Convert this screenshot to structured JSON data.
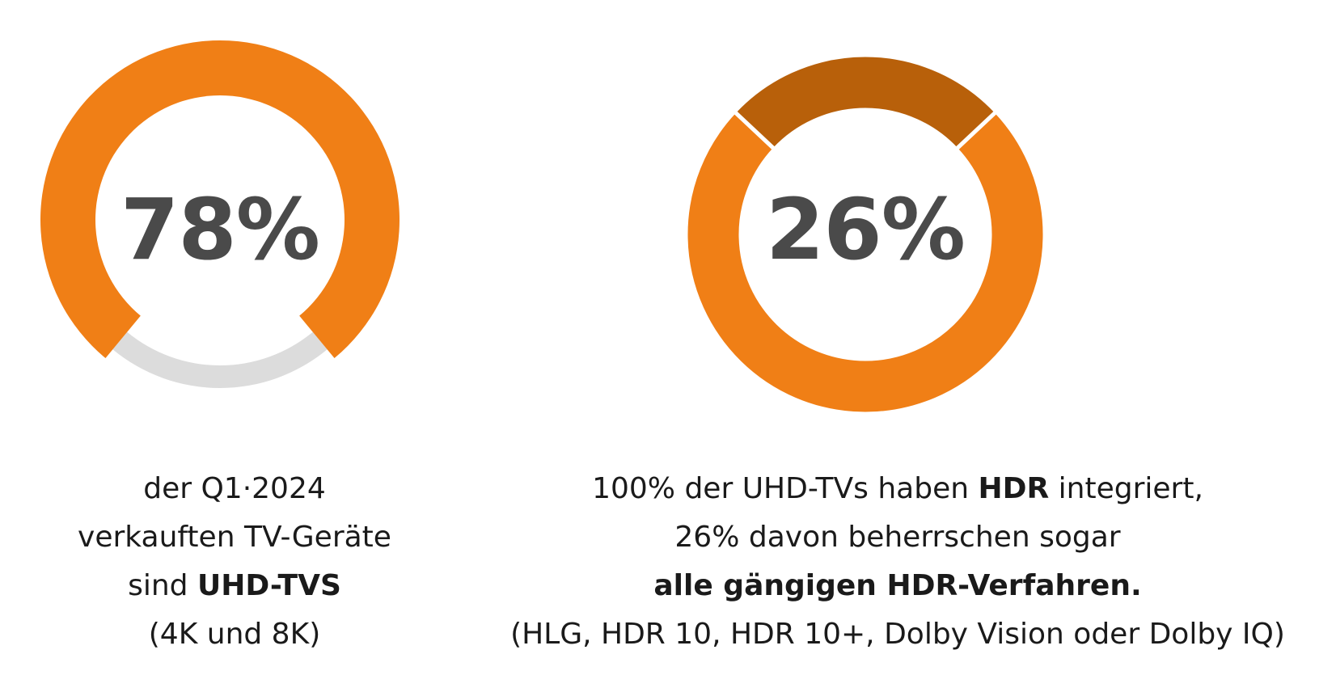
{
  "chart_data": [
    {
      "type": "pie",
      "center_label": "78%",
      "value": 78,
      "colors": {
        "value": "#f07f16",
        "remainder": "#dcdcdc"
      },
      "caption": {
        "line1": "der Q1·2024",
        "line2": "verkauften TV-Geräte",
        "line3_prefix": "sind ",
        "line3_bold": "UHD-TVS",
        "line4": "(4K und 8K)"
      }
    },
    {
      "type": "pie",
      "center_label": "26%",
      "value": 26,
      "colors": {
        "highlight": "#b8600a",
        "base": "#f07f16"
      },
      "caption": {
        "line1_prefix": "100% der UHD-TVs haben ",
        "line1_bold": "HDR",
        "line1_suffix": " integriert,",
        "line2": "26% davon beherrschen sogar",
        "line3_bold": "alle gängigen HDR-Verfahren.",
        "line4": "(HLG, HDR 10, HDR 10+, Dolby Vision oder Dolby IQ)"
      }
    }
  ]
}
